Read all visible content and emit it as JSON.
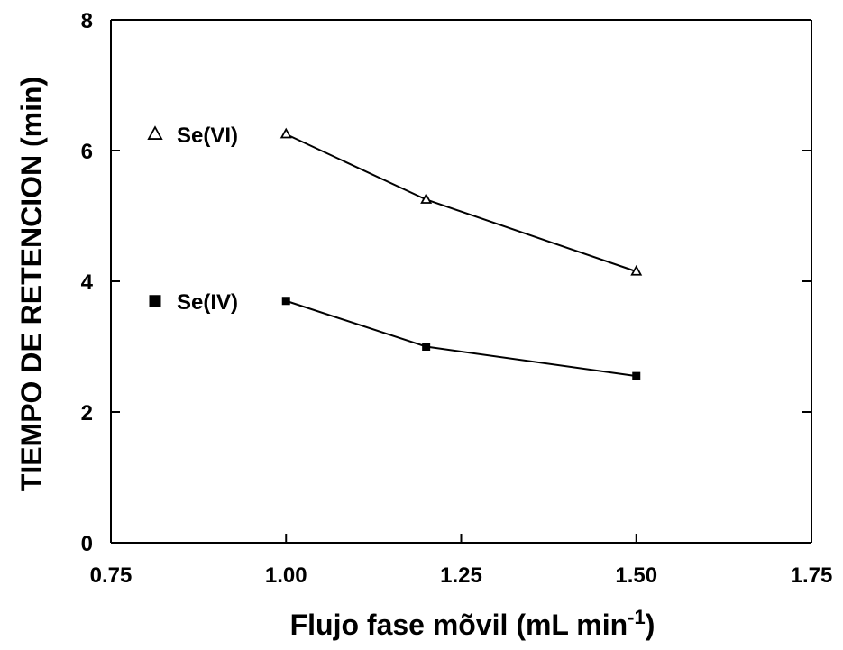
{
  "chart_data": {
    "type": "line",
    "title": "",
    "xlabel": "Flujo fase mõvil (mL min",
    "xlabel_superscript": "-1",
    "xlabel_close": ")",
    "ylabel": "TIEMPO DE RETENCION (min)",
    "xlim": [
      0.75,
      1.75
    ],
    "ylim": [
      0,
      8
    ],
    "x_ticks": [
      "0.75",
      "1.00",
      "1.25",
      "1.50",
      "1.75"
    ],
    "y_ticks": [
      "0",
      "2",
      "4",
      "6",
      "8"
    ],
    "grid": false,
    "legend_position": "left, beside series start",
    "series": [
      {
        "name": "Se(VI)",
        "marker": "open-triangle",
        "color": "#000000",
        "x": [
          1.0,
          1.2,
          1.5
        ],
        "y": [
          6.25,
          5.25,
          4.15
        ]
      },
      {
        "name": "Se(IV)",
        "marker": "filled-square",
        "color": "#000000",
        "x": [
          1.0,
          1.2,
          1.5
        ],
        "y": [
          3.7,
          3.0,
          2.55
        ]
      }
    ]
  }
}
